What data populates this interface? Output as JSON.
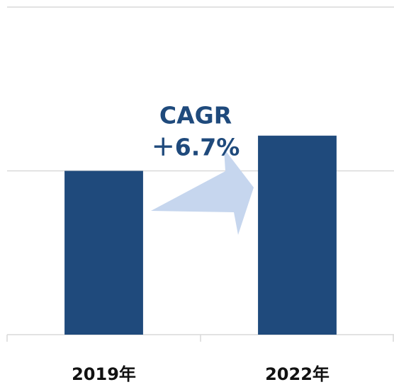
{
  "chart_data": {
    "type": "bar",
    "categories": [
      "2019年",
      "2022年"
    ],
    "values": [
      1,
      1.215
    ],
    "color": "#1f4a7c",
    "ylim": [
      0,
      2
    ],
    "yticks": [
      0,
      1,
      2
    ],
    "grid": true,
    "annotation": [
      "CAGR",
      "＋6.7%"
    ]
  }
}
